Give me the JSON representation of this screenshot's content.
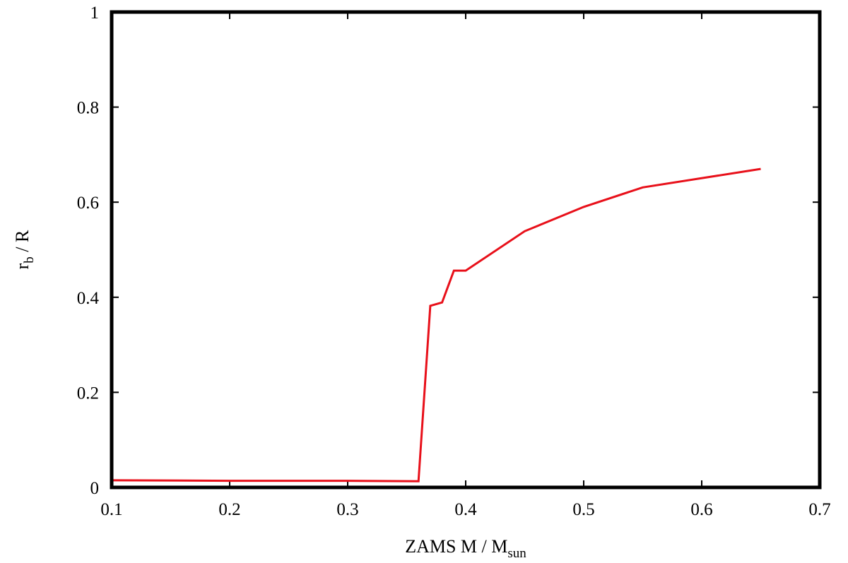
{
  "chart_data": {
    "type": "line",
    "title": "",
    "xlabel": {
      "main": "ZAMS M / M",
      "sub": "sun"
    },
    "ylabel": {
      "main": "r",
      "sub": "b",
      "tail": " / R"
    },
    "xlim": [
      0.1,
      0.7
    ],
    "ylim": [
      0,
      1
    ],
    "xticks": [
      "0.1",
      "0.2",
      "0.3",
      "0.4",
      "0.5",
      "0.6",
      "0.7"
    ],
    "yticks": [
      "0",
      "0.2",
      "0.4",
      "0.6",
      "0.8",
      "1"
    ],
    "grid": false,
    "legend": "none",
    "series": [
      {
        "color": "#e8101a",
        "x": [
          0.1,
          0.2,
          0.3,
          0.36,
          0.37,
          0.38,
          0.39,
          0.4,
          0.45,
          0.5,
          0.55,
          0.65
        ],
        "y": [
          0.015,
          0.014,
          0.014,
          0.013,
          0.382,
          0.389,
          0.456,
          0.456,
          0.539,
          0.59,
          0.631,
          0.67
        ]
      }
    ]
  }
}
